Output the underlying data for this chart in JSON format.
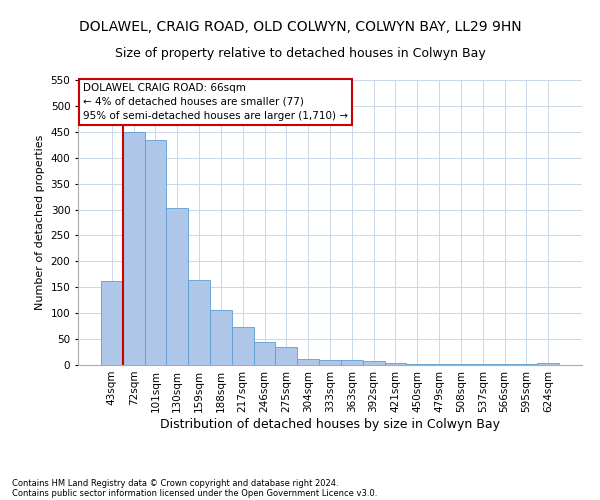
{
  "title": "DOLAWEL, CRAIG ROAD, OLD COLWYN, COLWYN BAY, LL29 9HN",
  "subtitle": "Size of property relative to detached houses in Colwyn Bay",
  "xlabel": "Distribution of detached houses by size in Colwyn Bay",
  "ylabel": "Number of detached properties",
  "footnote1": "Contains HM Land Registry data © Crown copyright and database right 2024.",
  "footnote2": "Contains public sector information licensed under the Open Government Licence v3.0.",
  "categories": [
    "43sqm",
    "72sqm",
    "101sqm",
    "130sqm",
    "159sqm",
    "188sqm",
    "217sqm",
    "246sqm",
    "275sqm",
    "304sqm",
    "333sqm",
    "363sqm",
    "392sqm",
    "421sqm",
    "450sqm",
    "479sqm",
    "508sqm",
    "537sqm",
    "566sqm",
    "595sqm",
    "624sqm"
  ],
  "values": [
    163,
    450,
    435,
    303,
    165,
    107,
    74,
    44,
    34,
    11,
    10,
    10,
    8,
    4,
    2,
    2,
    2,
    1,
    1,
    1,
    4
  ],
  "bar_color": "#aec6e8",
  "bar_edge_color": "#5a9fd4",
  "vline_color": "#cc0000",
  "annotation_title": "DOLAWEL CRAIG ROAD: 66sqm",
  "annotation_line2": "← 4% of detached houses are smaller (77)",
  "annotation_line3": "95% of semi-detached houses are larger (1,710) →",
  "annotation_box_color": "#cc0000",
  "ylim": [
    0,
    550
  ],
  "yticks": [
    0,
    50,
    100,
    150,
    200,
    250,
    300,
    350,
    400,
    450,
    500,
    550
  ],
  "background_color": "#ffffff",
  "grid_color": "#c8d8e8",
  "title_fontsize": 10,
  "subtitle_fontsize": 9,
  "ylabel_fontsize": 8,
  "xlabel_fontsize": 9,
  "tick_fontsize": 7.5,
  "footnote_fontsize": 6,
  "annotation_fontsize": 7.5
}
